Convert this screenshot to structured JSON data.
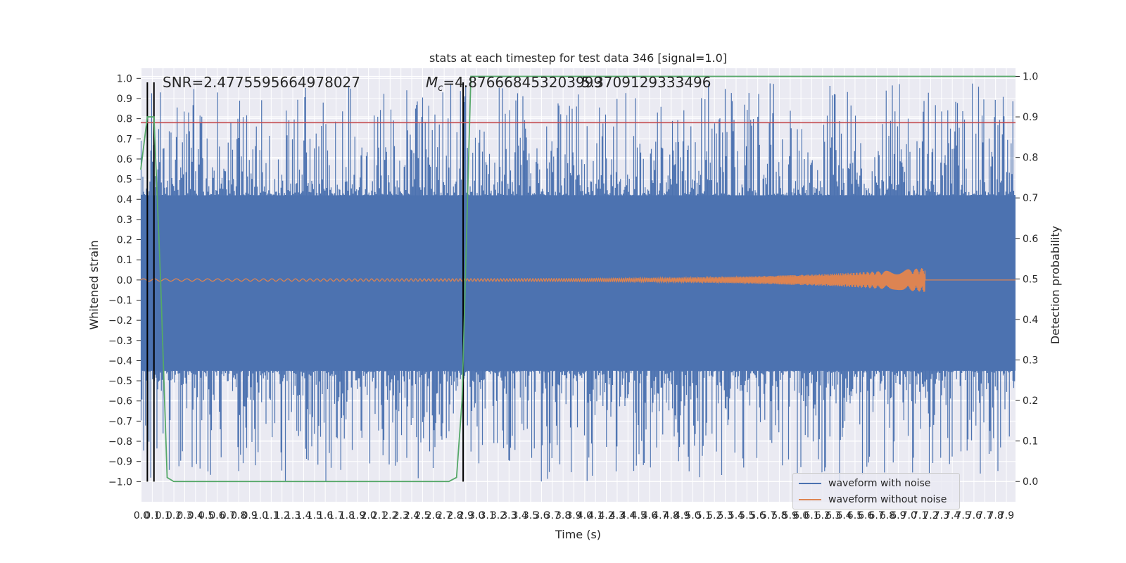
{
  "chart_data": {
    "type": "line",
    "title": "stats at each timestep for test data 346 [signal=1.0]",
    "xlabel": "Time (s)",
    "ylabel": "Whitened strain",
    "y2label": "Detection probability",
    "annotations": {
      "snr": "SNR=2.4775595664978027",
      "mc": "M_c=4.876668453203999",
      "overlap": "5.3709129333496"
    },
    "xlim": [
      0,
      7.95
    ],
    "ylim": [
      -1.1,
      1.05
    ],
    "y2lim": [
      -0.05,
      1.02
    ],
    "x_ticks": [
      "0.0",
      "0.1",
      "0.1",
      "0.2",
      "0.3",
      "0.4",
      "0.5",
      "0.6",
      "0.7",
      "0.8",
      "0.9",
      "1.0",
      "1.1",
      "1.2",
      "1.3",
      "1.4",
      "1.5",
      "1.6",
      "1.7",
      "1.8",
      "1.9",
      "2.0",
      "2.1",
      "2.2",
      "2.3",
      "2.4",
      "2.5",
      "2.6",
      "2.7",
      "2.8",
      "2.9",
      "3.0",
      "3.1",
      "3.2",
      "3.3",
      "3.4",
      "3.5",
      "3.6",
      "3.7",
      "3.8",
      "3.9",
      "4.0",
      "4.1",
      "4.2",
      "4.3",
      "4.4",
      "4.5",
      "4.6",
      "4.7",
      "4.8",
      "4.9",
      "5.0",
      "5.1",
      "5.2",
      "5.3",
      "5.4",
      "5.5",
      "5.6",
      "5.7",
      "5.8",
      "5.9",
      "6.0",
      "6.1",
      "6.2",
      "6.3",
      "6.4",
      "6.5",
      "6.6",
      "6.7",
      "6.8",
      "6.9",
      "7.0",
      "7.1",
      "7.2",
      "7.3",
      "7.4",
      "7.5",
      "7.6",
      "7.7",
      "7.8",
      "7.9"
    ],
    "y_ticks": [
      -1.0,
      -0.9,
      -0.8,
      -0.7,
      -0.6,
      -0.5,
      -0.4,
      -0.3,
      -0.2,
      -0.1,
      0.0,
      0.1,
      0.2,
      0.3,
      0.4,
      0.5,
      0.6,
      0.7,
      0.8,
      0.9,
      1.0
    ],
    "y_tick_labels": [
      "−1.0",
      "−0.9",
      "−0.8",
      "−0.7",
      "−0.6",
      "−0.5",
      "−0.4",
      "−0.3",
      "−0.2",
      "−0.1",
      "0.0",
      "0.1",
      "0.2",
      "0.3",
      "0.4",
      "0.5",
      "0.6",
      "0.7",
      "0.8",
      "0.9",
      "1.0"
    ],
    "y2_ticks": [
      0.0,
      0.1,
      0.2,
      0.3,
      0.4,
      0.5,
      0.6,
      0.7,
      0.8,
      0.9,
      1.0
    ],
    "y2_tick_labels": [
      "0.0",
      "0.1",
      "0.2",
      "0.3",
      "0.4",
      "0.5",
      "0.6",
      "0.7",
      "0.8",
      "0.9",
      "1.0"
    ],
    "threshold_y": 0.78,
    "vertical_lines_x": [
      0.06,
      0.12,
      2.93
    ],
    "series": [
      {
        "name": "waveform with noise",
        "color": "#4c72b0",
        "envelope_min": -1.0,
        "envelope_max": 0.98,
        "core_band": [
          -0.45,
          0.42
        ]
      },
      {
        "name": "waveform without noise",
        "color": "#dd8452",
        "x_end": 7.13,
        "amplitude_start": 0.006,
        "amplitude_end": 0.06
      },
      {
        "name": "detection probability",
        "color": "#55a868",
        "axis": "right",
        "x": [
          0.0,
          0.06,
          0.12,
          0.18,
          0.24,
          0.3,
          1.0,
          2.0,
          2.8,
          2.87,
          2.92,
          2.96,
          3.0,
          7.95
        ],
        "y": [
          0.77,
          0.9,
          0.9,
          0.5,
          0.01,
          0.0,
          0.0,
          0.0,
          0.0,
          0.01,
          0.2,
          0.6,
          1.0,
          1.0
        ]
      }
    ],
    "legend_placement": "lower right",
    "grid": true,
    "colors": {
      "plot_bg": "#eaeaf2",
      "grid": "#ffffff",
      "threshold": "#c44e52",
      "vline": "#000000",
      "text": "#262626"
    }
  }
}
